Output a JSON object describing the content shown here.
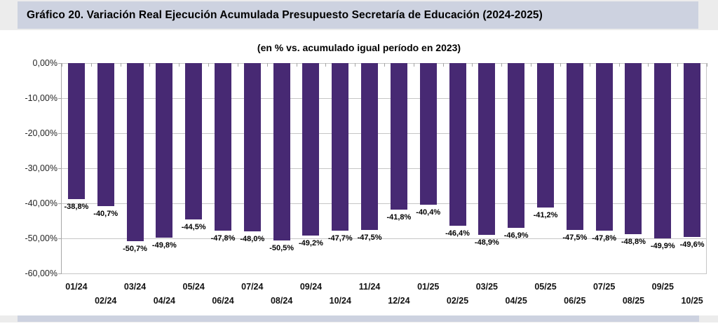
{
  "header": {
    "title": "Gráfico 20. Variación Real Ejecución Acumulada Presupuesto Secretaría de Educación (2024-2025)"
  },
  "chart_data": {
    "type": "bar",
    "title": "Gráfico 20. Variación Real Ejecución Acumulada Presupuesto Secretaría de Educación (2024-2025)",
    "subtitle": "(en % vs. acumulado igual período en 2023)",
    "categories": [
      "01/24",
      "02/24",
      "03/24",
      "04/24",
      "05/24",
      "06/24",
      "07/24",
      "08/24",
      "09/24",
      "10/24",
      "11/24",
      "12/24",
      "01/25",
      "02/25",
      "03/25",
      "04/25",
      "05/25",
      "06/25",
      "07/25",
      "08/25",
      "09/25",
      "10/25"
    ],
    "values": [
      -38.8,
      -40.7,
      -50.7,
      -49.8,
      -44.5,
      -47.8,
      -48.0,
      -50.5,
      -49.2,
      -47.7,
      -47.5,
      -41.8,
      -40.4,
      -46.4,
      -48.9,
      -46.9,
      -41.2,
      -47.5,
      -47.8,
      -48.8,
      -49.9,
      -49.6
    ],
    "value_labels": [
      "-38,8%",
      "-40,7%",
      "-50,7%",
      "-49,8%",
      "-44,5%",
      "-47,8%",
      "-48,0%",
      "-50,5%",
      "-49,2%",
      "-47,7%",
      "-47,5%",
      "-41,8%",
      "-40,4%",
      "-46,4%",
      "-48,9%",
      "-46,9%",
      "-41,2%",
      "-47,5%",
      "-47,8%",
      "-48,8%",
      "-49,9%",
      "-49,6%"
    ],
    "y_tick_labels": [
      "0,00%",
      "-10,00%",
      "-20,00%",
      "-30,00%",
      "-40,00%",
      "-50,00%",
      "-60,00%"
    ],
    "y_tick_values": [
      0,
      -10,
      -20,
      -30,
      -40,
      -50,
      -60
    ],
    "ylim": [
      -60,
      0
    ],
    "grid": true,
    "legend": null,
    "xlabel": "",
    "ylabel": ""
  },
  "colors": {
    "bar": "#472973",
    "title_band": "#CDD2E0",
    "page_margin": "#ECECEC",
    "gridline": "#C6C6C6",
    "axis": "#A6A6A6"
  }
}
